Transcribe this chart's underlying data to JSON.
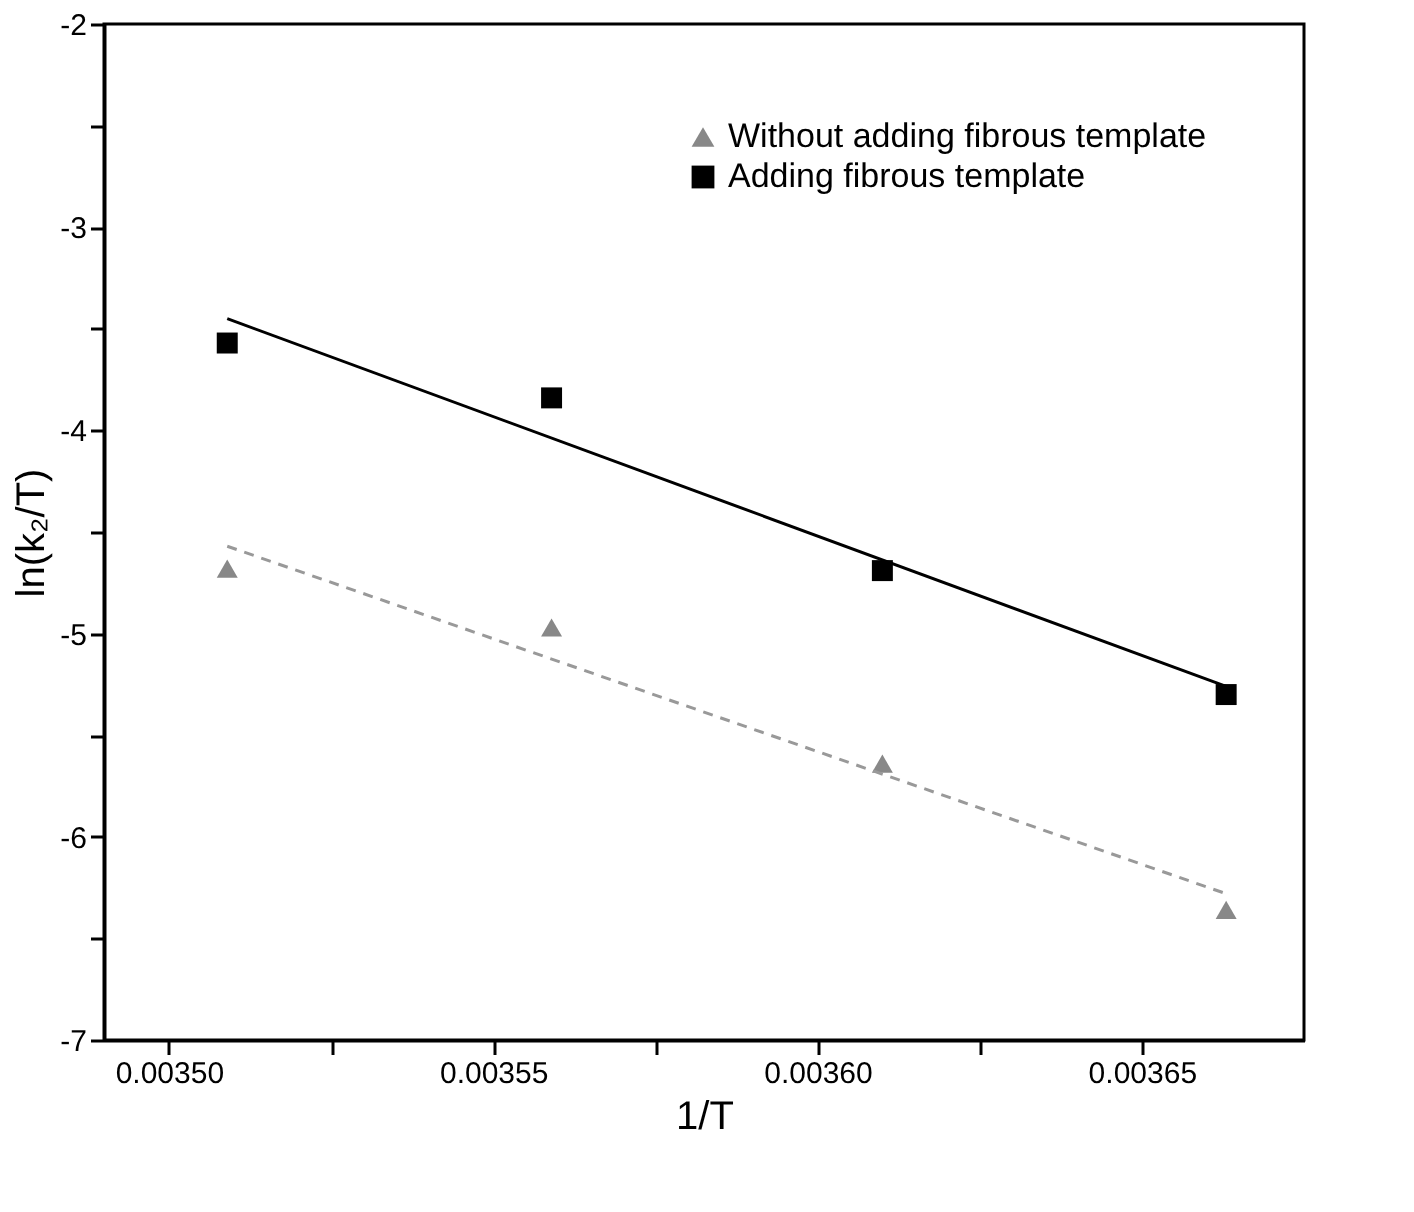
{
  "chart_data": {
    "type": "scatter",
    "xlabel": "1/T",
    "ylabel": "ln(k₂/T)",
    "xlim": [
      0.00349,
      0.003675
    ],
    "ylim": [
      -7,
      -2
    ],
    "xticks": [
      {
        "value": 0.0035,
        "label": "0.00350"
      },
      {
        "value": 0.003525,
        "label": null
      },
      {
        "value": 0.00355,
        "label": "0.00355"
      },
      {
        "value": 0.003575,
        "label": null
      },
      {
        "value": 0.0036,
        "label": "0.00360"
      },
      {
        "value": 0.003625,
        "label": null
      },
      {
        "value": 0.00365,
        "label": "0.00365"
      }
    ],
    "yticks": [
      -7,
      {
        "value": -6.5,
        "label": null
      },
      -6,
      {
        "value": -5.5,
        "label": null
      },
      -5,
      {
        "value": -4.5,
        "label": null
      },
      -4,
      {
        "value": -3.5,
        "label": null
      },
      -3,
      {
        "value": -2.5,
        "label": null
      },
      -2
    ],
    "grid": false,
    "legend": "top right",
    "series": [
      {
        "name": "Without adding fibrous template",
        "marker": "triangle",
        "color": "#888888",
        "x": [
          0.003509,
          0.003559,
          0.00361,
          0.003663
        ],
        "values": [
          -4.68,
          -4.97,
          -5.64,
          -6.36
        ]
      },
      {
        "name": "Adding fibrous template",
        "marker": "square",
        "color": "#000000",
        "x": [
          0.003509,
          0.003559,
          0.00361,
          0.003663
        ],
        "values": [
          -3.57,
          -3.84,
          -4.69,
          -5.3
        ]
      },
      {
        "type": "line",
        "line_style": "dashed",
        "color": "#999999",
        "x": [
          0.003509,
          0.003663
        ],
        "values": [
          -4.57,
          -6.28
        ]
      },
      {
        "type": "line",
        "line_style": "solid",
        "color": "#000000",
        "x": [
          0.003509,
          0.003663
        ],
        "values": [
          -3.45,
          -5.26
        ]
      }
    ]
  }
}
